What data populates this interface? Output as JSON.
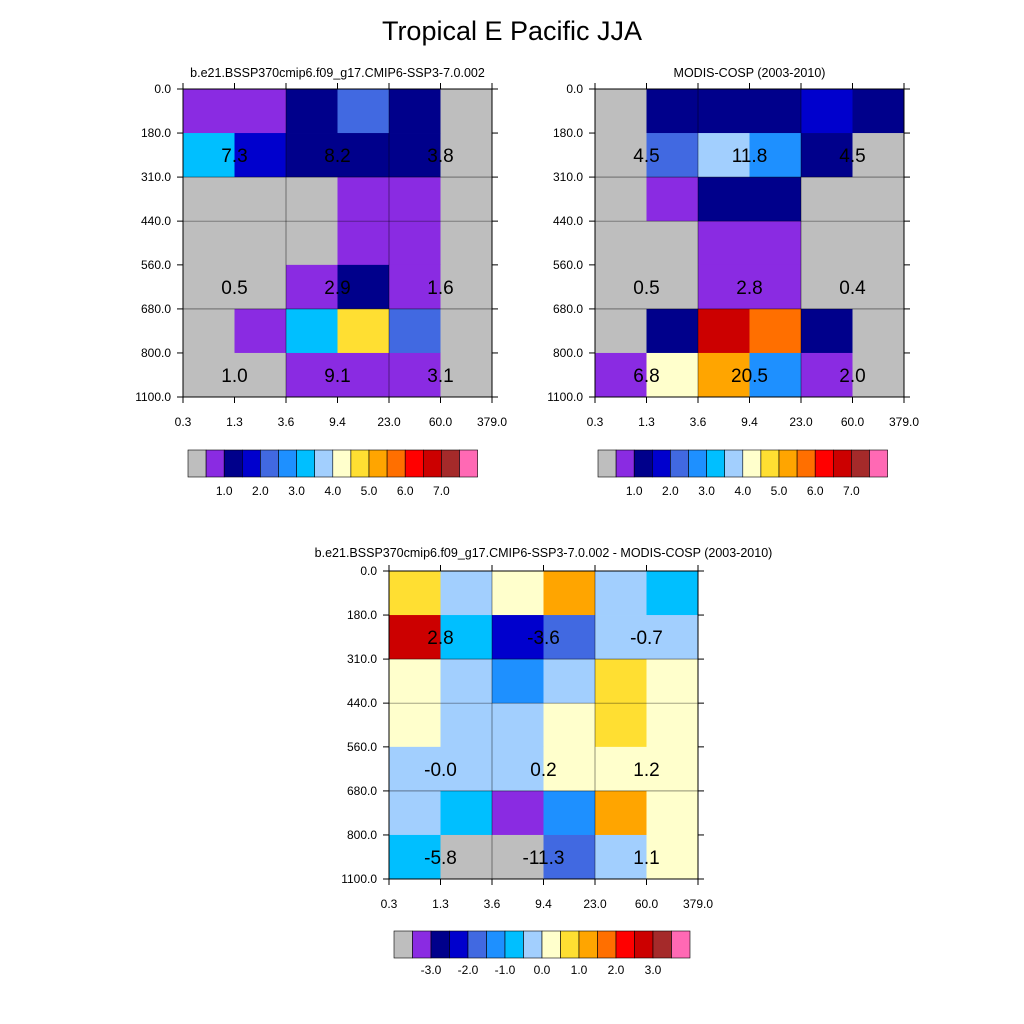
{
  "page_title": "Tropical E Pacific JJA",
  "palettes": {
    "absolute": [
      "#bebebe",
      "#8a2be2",
      "#00008b",
      "#0000cd",
      "#4169e1",
      "#1e90ff",
      "#00bfff",
      "#a2cffe",
      "#ffffcc",
      "#ffdf32",
      "#ffa500",
      "#ff6f00",
      "#ff0000",
      "#cc0000",
      "#a52a2a",
      "#ff69b4"
    ],
    "difference": [
      "#bebebe",
      "#8a2be2",
      "#00008b",
      "#0000cd",
      "#4169e1",
      "#1e90ff",
      "#00bfff",
      "#a2cffe",
      "#ffffcc",
      "#ffdf32",
      "#ffa500",
      "#ff6f00",
      "#ff0000",
      "#cc0000",
      "#a52a2a",
      "#ff69b4"
    ]
  },
  "chart_data": [
    {
      "type": "heatmap",
      "title": "b.e21.BSSP370cmip6.f09_g17.CMIP6-SSP3-7.0.002",
      "x_ticks": [
        "0.3",
        "1.3",
        "3.6",
        "9.4",
        "23.0",
        "60.0",
        "379.0"
      ],
      "y_ticks": [
        "0.0",
        "180.0",
        "310.0",
        "440.0",
        "560.0",
        "680.0",
        "800.0",
        "1100.0"
      ],
      "grid": true,
      "cell_color_index": [
        [
          1,
          1,
          2,
          4,
          2,
          0
        ],
        [
          6,
          3,
          2,
          2,
          2,
          0
        ],
        [
          0,
          0,
          0,
          1,
          1,
          0
        ],
        [
          0,
          0,
          0,
          1,
          1,
          0
        ],
        [
          0,
          0,
          1,
          2,
          1,
          0
        ],
        [
          0,
          1,
          6,
          9,
          4,
          0
        ],
        [
          0,
          0,
          1,
          1,
          1,
          0
        ]
      ],
      "annotations": [
        {
          "text": "7.3",
          "col": 1,
          "row": 1
        },
        {
          "text": "8.2",
          "col": 3,
          "row": 1
        },
        {
          "text": "3.8",
          "col": 5,
          "row": 1
        },
        {
          "text": "0.5",
          "col": 1,
          "row": 4
        },
        {
          "text": "2.9",
          "col": 3,
          "row": 4
        },
        {
          "text": "1.6",
          "col": 5,
          "row": 4
        },
        {
          "text": "1.0",
          "col": 1,
          "row": 6
        },
        {
          "text": "9.1",
          "col": 3,
          "row": 6
        },
        {
          "text": "3.1",
          "col": 5,
          "row": 6
        }
      ],
      "colorbar_palette": "absolute",
      "colorbar_labels": [
        "1.0",
        "2.0",
        "3.0",
        "4.0",
        "5.0",
        "6.0",
        "7.0"
      ]
    },
    {
      "type": "heatmap",
      "title": "MODIS-COSP (2003-2010)",
      "x_ticks": [
        "0.3",
        "1.3",
        "3.6",
        "9.4",
        "23.0",
        "60.0",
        "379.0"
      ],
      "y_ticks": [
        "0.0",
        "180.0",
        "310.0",
        "440.0",
        "560.0",
        "680.0",
        "800.0",
        "1100.0"
      ],
      "grid": true,
      "cell_color_index": [
        [
          0,
          2,
          2,
          2,
          3,
          2
        ],
        [
          0,
          4,
          7,
          5,
          2,
          0
        ],
        [
          0,
          1,
          2,
          2,
          0,
          0
        ],
        [
          0,
          0,
          1,
          1,
          0,
          0
        ],
        [
          0,
          0,
          1,
          1,
          0,
          0
        ],
        [
          0,
          2,
          13,
          11,
          2,
          0
        ],
        [
          1,
          8,
          10,
          5,
          1,
          0
        ]
      ],
      "annotations": [
        {
          "text": "4.5",
          "col": 1,
          "row": 1
        },
        {
          "text": "11.8",
          "col": 3,
          "row": 1
        },
        {
          "text": "4.5",
          "col": 5,
          "row": 1
        },
        {
          "text": "0.5",
          "col": 1,
          "row": 4
        },
        {
          "text": "2.8",
          "col": 3,
          "row": 4
        },
        {
          "text": "0.4",
          "col": 5,
          "row": 4
        },
        {
          "text": "6.8",
          "col": 1,
          "row": 6
        },
        {
          "text": "20.5",
          "col": 3,
          "row": 6
        },
        {
          "text": "2.0",
          "col": 5,
          "row": 6
        }
      ],
      "colorbar_palette": "absolute",
      "colorbar_labels": [
        "1.0",
        "2.0",
        "3.0",
        "4.0",
        "5.0",
        "6.0",
        "7.0"
      ]
    },
    {
      "type": "heatmap",
      "title": "b.e21.BSSP370cmip6.f09_g17.CMIP6-SSP3-7.0.002 - MODIS-COSP (2003-2010)",
      "x_ticks": [
        "0.3",
        "1.3",
        "3.6",
        "9.4",
        "23.0",
        "60.0",
        "379.0"
      ],
      "y_ticks": [
        "0.0",
        "180.0",
        "310.0",
        "440.0",
        "560.0",
        "680.0",
        "800.0",
        "1100.0"
      ],
      "grid": true,
      "cell_color_index": [
        [
          9,
          7,
          8,
          10,
          7,
          6
        ],
        [
          13,
          6,
          3,
          4,
          7,
          7
        ],
        [
          8,
          7,
          5,
          7,
          9,
          8
        ],
        [
          8,
          7,
          7,
          8,
          9,
          8
        ],
        [
          7,
          7,
          7,
          8,
          8,
          8
        ],
        [
          7,
          6,
          1,
          5,
          10,
          8
        ],
        [
          6,
          0,
          0,
          4,
          7,
          8
        ]
      ],
      "annotations": [
        {
          "text": "2.8",
          "col": 1,
          "row": 1
        },
        {
          "text": "-3.6",
          "col": 3,
          "row": 1
        },
        {
          "text": "-0.7",
          "col": 5,
          "row": 1
        },
        {
          "text": "-0.0",
          "col": 1,
          "row": 4
        },
        {
          "text": "0.2",
          "col": 3,
          "row": 4
        },
        {
          "text": "1.2",
          "col": 5,
          "row": 4
        },
        {
          "text": "-5.8",
          "col": 1,
          "row": 6
        },
        {
          "text": "-11.3",
          "col": 3,
          "row": 6
        },
        {
          "text": "1.1",
          "col": 5,
          "row": 6
        }
      ],
      "colorbar_palette": "difference",
      "colorbar_labels": [
        "-3.0",
        "-2.0",
        "-1.0",
        "0.0",
        "1.0",
        "2.0",
        "3.0"
      ]
    }
  ]
}
